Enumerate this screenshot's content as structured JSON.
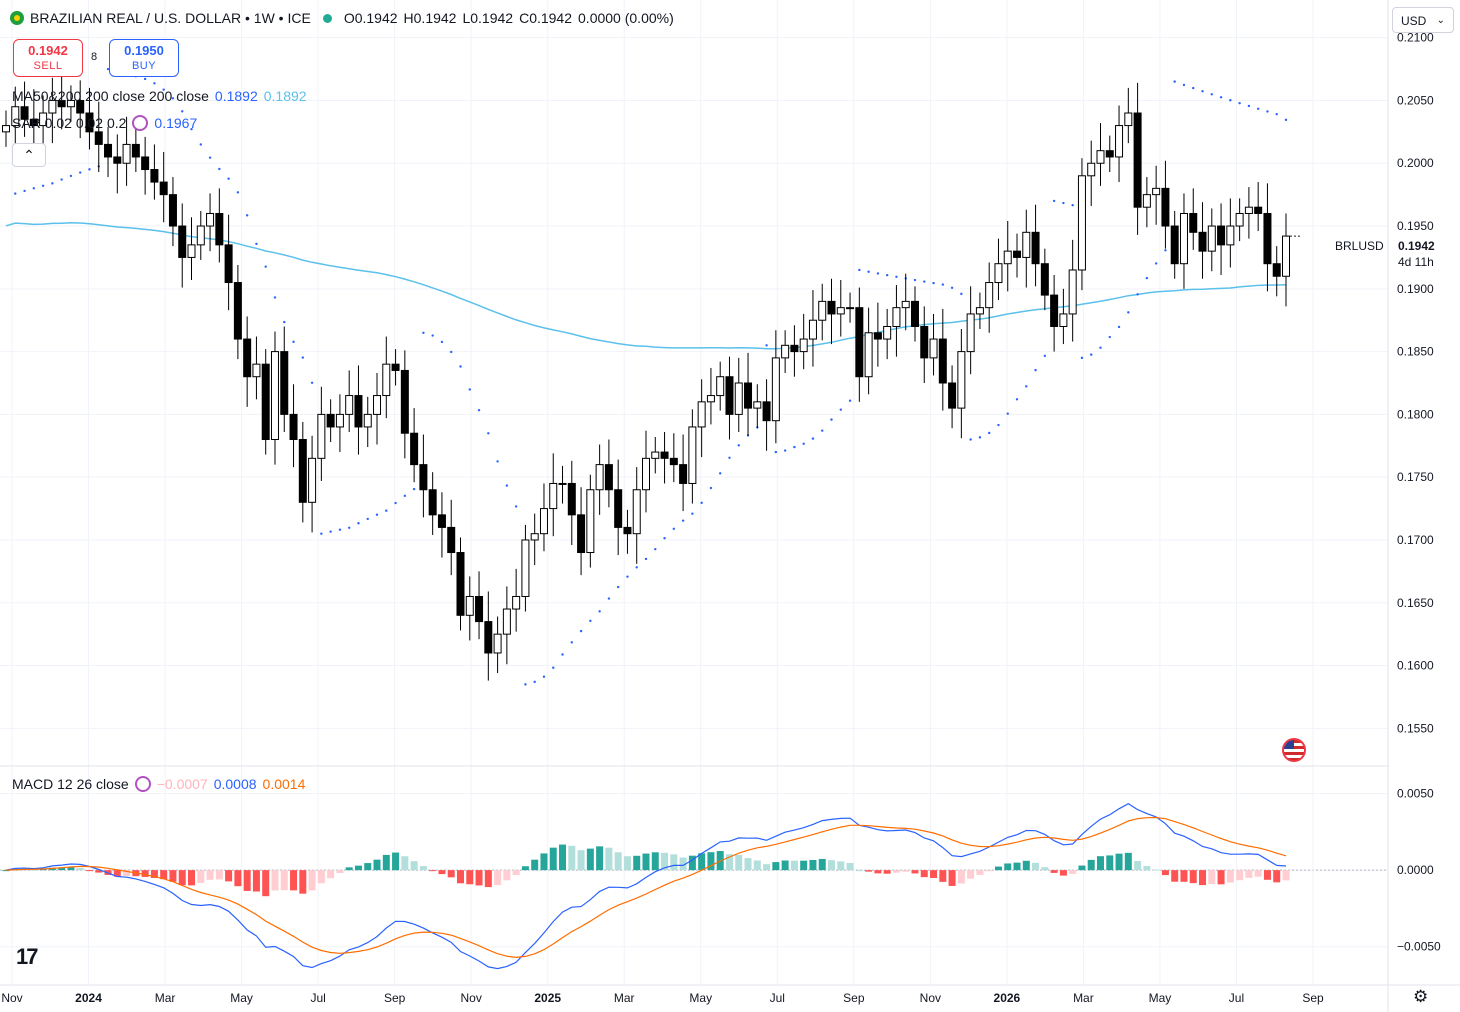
{
  "header": {
    "symbol_title": "BRAZILIAN REAL / U.S. DOLLAR • 1W • ICE",
    "open": "O0.1942",
    "high": "H0.1942",
    "low": "L0.1942",
    "close": "C0.1942",
    "change": "0.0000 (0.00%)"
  },
  "trade": {
    "sell_price": "0.1942",
    "sell_label": "SELL",
    "spread": "8",
    "buy_price": "0.1950",
    "buy_label": "BUY"
  },
  "indicators": {
    "ma_label": "MA50&200 200 close 200 close",
    "ma_value1": "0.1892",
    "ma_value2": "0.1892",
    "sar_label": "SAR 0.02 0.02 0.2",
    "sar_value": "0.1967",
    "macd_label": "MACD 12 26 close",
    "macd_hist_value": "−0.0007",
    "macd_value": "0.0008",
    "macd_signal_value": "0.0014"
  },
  "currency_select": {
    "value": "USD"
  },
  "last_price": {
    "symbol": "BRLUSD",
    "price": "0.1942",
    "countdown": "4d 11h"
  },
  "colors": {
    "up_candle": "#ffffff",
    "down_candle": "#000000",
    "ma": "#5bc0eb",
    "sar": "#2962ff",
    "macd_line": "#2962ff",
    "signal_line": "#ff6d00",
    "hist_pos_strong": "#26a69a",
    "hist_pos_weak": "#b2dfdb",
    "hist_neg_strong": "#ff5252",
    "hist_neg_weak": "#ffcdd2"
  },
  "icons": {
    "logo": "tradingview-logo-icon",
    "settings": "gear-icon",
    "flag": "us-flag-icon",
    "collapse": "chevron-up-icon"
  },
  "chart_data": [
    {
      "type": "candlestick",
      "title": "BRAZILIAN REAL / U.S. DOLLAR • 1W • ICE",
      "ylim": [
        0.152,
        0.213
      ],
      "y_ticks": [
        "0.2100",
        "0.2050",
        "0.2000",
        "0.1950",
        "0.1900",
        "0.1850",
        "0.1800",
        "0.1750",
        "0.1700",
        "0.1650",
        "0.1600",
        "0.1550"
      ],
      "x_ticks": [
        "Nov",
        "2024",
        "Mar",
        "May",
        "Jul",
        "Sep",
        "Nov",
        "2025",
        "Mar",
        "May",
        "Jul",
        "Sep",
        "Nov",
        "2026",
        "Mar",
        "May",
        "Jul",
        "Sep"
      ],
      "weekly_close": [
        0.203,
        0.2045,
        0.2035,
        0.203,
        0.204,
        0.205,
        0.2045,
        0.205,
        0.204,
        0.2025,
        0.2015,
        0.2005,
        0.2,
        0.2015,
        0.2005,
        0.1995,
        0.1985,
        0.1975,
        0.195,
        0.1925,
        0.1935,
        0.195,
        0.196,
        0.1935,
        0.1905,
        0.186,
        0.183,
        0.184,
        0.178,
        0.185,
        0.18,
        0.178,
        0.173,
        0.1765,
        0.18,
        0.179,
        0.18,
        0.1815,
        0.179,
        0.18,
        0.1815,
        0.184,
        0.1835,
        0.1785,
        0.176,
        0.174,
        0.172,
        0.171,
        0.169,
        0.164,
        0.1655,
        0.1635,
        0.161,
        0.1625,
        0.1645,
        0.1655,
        0.17,
        0.1705,
        0.1725,
        0.1745,
        0.1745,
        0.172,
        0.169,
        0.174,
        0.176,
        0.174,
        0.171,
        0.1705,
        0.174,
        0.1765,
        0.177,
        0.1765,
        0.176,
        0.1745,
        0.179,
        0.181,
        0.1815,
        0.183,
        0.18,
        0.1825,
        0.1805,
        0.181,
        0.1795,
        0.1845,
        0.1855,
        0.185,
        0.186,
        0.1875,
        0.189,
        0.188,
        0.1885,
        0.1885,
        0.183,
        0.1865,
        0.186,
        0.187,
        0.1885,
        0.189,
        0.187,
        0.1845,
        0.186,
        0.1825,
        0.1805,
        0.185,
        0.188,
        0.1885,
        0.1905,
        0.192,
        0.193,
        0.1925,
        0.1945,
        0.192,
        0.1895,
        0.187,
        0.188,
        0.1915,
        0.199,
        0.2,
        0.201,
        0.2005,
        0.203,
        0.204,
        0.1965,
        0.1975,
        0.198,
        0.195,
        0.192,
        0.196,
        0.1945,
        0.193,
        0.195,
        0.1935,
        0.195,
        0.196,
        0.1965,
        0.196,
        0.192,
        0.191,
        0.1942
      ],
      "ma200_start": 0.1916,
      "ma200_end": 0.1892,
      "sar_last": 0.1967,
      "last_price": 0.1942
    },
    {
      "type": "macd",
      "title": "MACD 12 26 close",
      "ylim": [
        -0.0075,
        0.0068
      ],
      "y_ticks": [
        "0.0050",
        "0.0000",
        "−0.0050"
      ],
      "macd_last": 0.0008,
      "signal_last": 0.0014,
      "hist_last": -0.0007
    }
  ]
}
